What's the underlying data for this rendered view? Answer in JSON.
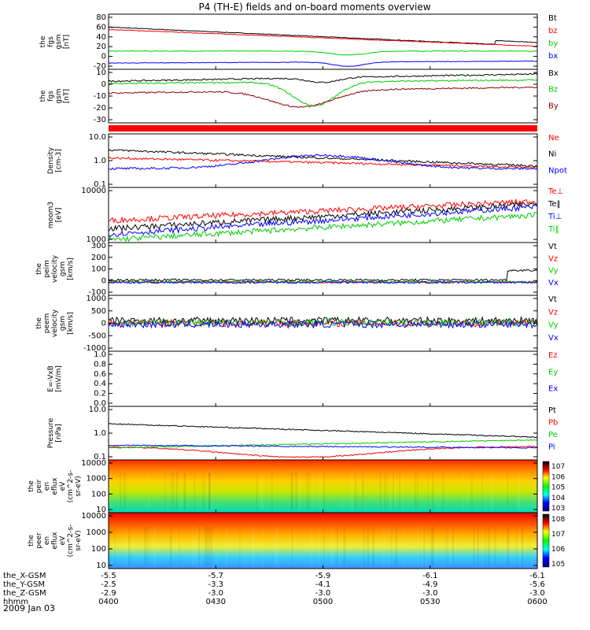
{
  "title": "P4 (TH-E) fields and on-board moments overview",
  "date_label": "2009 Jan 03",
  "x_axis": {
    "tick_times": [
      "0400",
      "0430",
      "0500",
      "0530",
      "0600"
    ],
    "rows": [
      {
        "label": "the_X-GSM",
        "values": [
          "-5.5",
          "-5.7",
          "-5.9",
          "-6.1",
          "-6.1"
        ]
      },
      {
        "label": "the_Y-GSM",
        "values": [
          "-2.5",
          "-3.3",
          "-4.1",
          "-4.9",
          "-5.6"
        ]
      },
      {
        "label": "the_Z-GSM",
        "values": [
          "-2.9",
          "-3.0",
          "-3.0",
          "-3.0",
          "-3.0"
        ]
      },
      {
        "label": "hhmm",
        "values": [
          "0400",
          "0430",
          "0500",
          "0530",
          "0600"
        ]
      }
    ]
  },
  "chart_data": [
    {
      "type": "line",
      "ylabel": [
        "the",
        "fgs",
        "gsm",
        "[nT]"
      ],
      "yscale": "linear",
      "ylim": [
        -30,
        85
      ],
      "yticks": [
        "80",
        "60",
        "40",
        "20",
        "0",
        "-20"
      ],
      "series": [
        {
          "name": "Bt",
          "color": "#000000"
        },
        {
          "name": "bz",
          "color": "#ff0000"
        },
        {
          "name": "by",
          "color": "#00cc00"
        },
        {
          "name": "bx",
          "color": "#0000ff"
        }
      ]
    },
    {
      "type": "line",
      "ylabel": [
        "the",
        "fgs",
        "gsm",
        "[nT]"
      ],
      "yscale": "linear",
      "ylim": [
        -35,
        10
      ],
      "yticks": [
        "10",
        "0",
        "-10",
        "-20",
        "-30"
      ],
      "series": [
        {
          "name": "Bx",
          "color": "#000000"
        },
        {
          "name": "Bz",
          "color": "#00cc00"
        },
        {
          "name": "By",
          "color": "#8b0000"
        }
      ]
    },
    {
      "type": "line",
      "ylabel": [
        "Density",
        "[cm-3]"
      ],
      "yscale": "log",
      "ylim": [
        0.1,
        10.0
      ],
      "yticks": [
        "10.0",
        "1.0",
        "0.1"
      ],
      "series": [
        {
          "name": "Ne",
          "color": "#ff0000"
        },
        {
          "name": "Ni",
          "color": "#000000"
        },
        {
          "name": "Npot",
          "color": "#0000ff"
        }
      ]
    },
    {
      "type": "line",
      "ylabel": [
        "moom3",
        "[eV]"
      ],
      "yscale": "log",
      "ylim": [
        1000,
        10000
      ],
      "yticks": [
        "10000",
        "1000"
      ],
      "series": [
        {
          "name": "Te⊥",
          "color": "#ff0000"
        },
        {
          "name": "Te‖",
          "color": "#000000"
        },
        {
          "name": "Ti⊥",
          "color": "#0000ff"
        },
        {
          "name": "Ti‖",
          "color": "#00cc00"
        }
      ]
    },
    {
      "type": "line",
      "ylabel": [
        "the",
        "peim",
        "velocity",
        "gsm",
        "[km/s]"
      ],
      "yscale": "linear",
      "ylim": [
        -100,
        300
      ],
      "yticks": [
        "300",
        "200",
        "100",
        "0",
        "-100"
      ],
      "series": [
        {
          "name": "Vt",
          "color": "#000000"
        },
        {
          "name": "Vz",
          "color": "#ff0000"
        },
        {
          "name": "Vy",
          "color": "#00cc00"
        },
        {
          "name": "Vx",
          "color": "#0000ff"
        }
      ]
    },
    {
      "type": "line",
      "ylabel": [
        "the",
        "peem",
        "velocity",
        "gsm",
        "[km/s]"
      ],
      "yscale": "linear",
      "ylim": [
        -1000,
        1000
      ],
      "yticks": [
        "1000",
        "500",
        "0",
        "-500",
        "-1000"
      ],
      "series": [
        {
          "name": "Vt",
          "color": "#000000"
        },
        {
          "name": "Vz",
          "color": "#ff0000"
        },
        {
          "name": "Vy",
          "color": "#00cc00"
        },
        {
          "name": "Vx",
          "color": "#0000ff"
        }
      ]
    },
    {
      "type": "line",
      "ylabel": [
        "E=-VxB",
        "[mV/m]"
      ],
      "yscale": "linear",
      "ylim": [
        0,
        1
      ],
      "yticks": [
        "1.0",
        "0.8",
        "0.6",
        "0.4",
        "0.2",
        "0.0"
      ],
      "series": [
        {
          "name": "Ez",
          "color": "#ff0000"
        },
        {
          "name": "Ey",
          "color": "#00cc00"
        },
        {
          "name": "Ex",
          "color": "#0000ff"
        }
      ]
    },
    {
      "type": "line",
      "ylabel": [
        "Pressure",
        "[nPa]"
      ],
      "yscale": "log",
      "ylim": [
        0.1,
        10.0
      ],
      "yticks": [
        "10.0",
        "1.0",
        "0.1"
      ],
      "series": [
        {
          "name": "Pt",
          "color": "#000000"
        },
        {
          "name": "Pb",
          "color": "#ff0000"
        },
        {
          "name": "Pe",
          "color": "#00cc00"
        },
        {
          "name": "Pi",
          "color": "#0000ff"
        }
      ]
    },
    {
      "type": "heatmap",
      "ylabel": [
        "the",
        "peir",
        "en",
        "eflux",
        "eV",
        "(cm^2-s-",
        "sr-eV)"
      ],
      "yscale": "log",
      "ylim": [
        8,
        20000
      ],
      "yticks": [
        "10000",
        "1000",
        "100",
        "10"
      ],
      "colorbar": {
        "labels": [
          "10^7",
          "10^6",
          "10^5",
          "10^4",
          "10^3"
        ]
      }
    },
    {
      "type": "heatmap",
      "ylabel": [
        "the",
        "peer",
        "en",
        "eflux",
        "eV",
        "(cm^2-s-",
        "sr-eV)"
      ],
      "yscale": "log",
      "ylim": [
        8,
        20000
      ],
      "yticks": [
        "10000",
        "1000",
        "100",
        "10"
      ],
      "colorbar": {
        "labels": [
          "10^8",
          "10^7",
          "10^6",
          "10^5"
        ]
      }
    }
  ]
}
